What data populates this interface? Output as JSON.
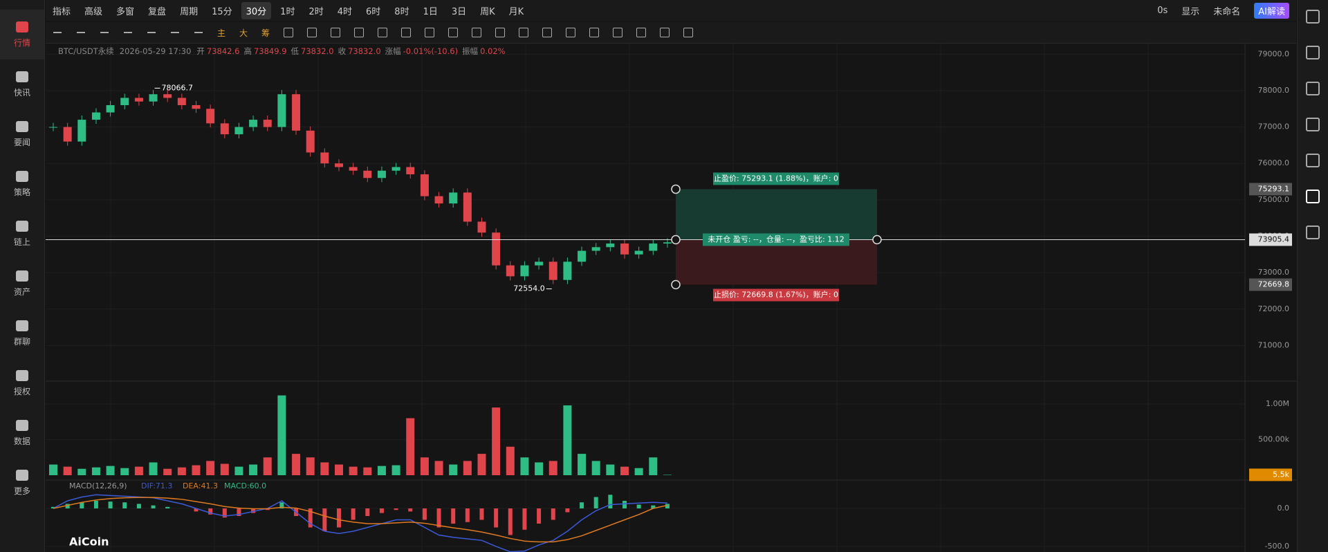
{
  "sidebar": {
    "items": [
      "行情",
      "快讯",
      "要闻",
      "策略",
      "链上",
      "资产",
      "群聊",
      "授权",
      "数据",
      "更多"
    ]
  },
  "toolbar": {
    "left": [
      "指标",
      "高级",
      "多窗",
      "复盘",
      "周期"
    ],
    "timeframes": [
      "15分",
      "30分",
      "1时",
      "2时",
      "4时",
      "6时",
      "8时",
      "1日",
      "3日",
      "周K",
      "月K"
    ],
    "selected_index": 1,
    "right": [
      "0s",
      "显示",
      "未命名",
      "AI解读"
    ],
    "drawing": [
      "主",
      "大",
      "筹"
    ]
  },
  "info": {
    "symbol": "BTC/USDT永续",
    "datetime": "2026-05-29 17:30",
    "fields": [
      {
        "label": "开",
        "value": "73842.6"
      },
      {
        "label": "高",
        "value": "73849.9"
      },
      {
        "label": "低",
        "value": "73832.0"
      },
      {
        "label": "收",
        "value": "73832.0"
      },
      {
        "label": "涨幅",
        "value": "-0.01%(-10.6)"
      },
      {
        "label": "振幅",
        "value": "0.02%"
      }
    ]
  },
  "chart": {
    "type": "candlestick",
    "closes": [
      77000,
      76600,
      77200,
      77400,
      77600,
      77800,
      77700,
      77900,
      77800,
      77600,
      77500,
      77100,
      76800,
      77000,
      77200,
      77000,
      77900,
      76900,
      76300,
      76000,
      75900,
      75800,
      75600,
      75800,
      75900,
      75700,
      75100,
      74900,
      75200,
      74400,
      74100,
      73200,
      72900,
      73200,
      73300,
      72800,
      73300,
      73600,
      73700,
      73800,
      73500,
      73600,
      73800,
      73832
    ],
    "ylim": [
      70020,
      79310
    ],
    "yticks": [
      {
        "value": 79000,
        "label": "79000.0"
      },
      {
        "value": 78000,
        "label": "78000.0"
      },
      {
        "value": 77000,
        "label": "77000.0"
      },
      {
        "value": 76000,
        "label": "76000.0"
      },
      {
        "value": 75000,
        "label": "75000.0"
      },
      {
        "value": 74000,
        "label": "74000.0"
      },
      {
        "value": 73000,
        "label": "73000.0"
      },
      {
        "value": 72000,
        "label": "72000.0"
      },
      {
        "value": 71000,
        "label": "71000.0"
      }
    ],
    "max_marker": 78066.7,
    "min_marker": {
      "value": 72554,
      "label": "72554.0"
    },
    "current_price": 73905.4,
    "take_profit": 75293.1,
    "stop_loss": 72669.8,
    "order": {
      "tp_text": "止盈价: 75293.1 (1.88%)，账户: 0",
      "entry_text": "未开仓 盈亏: --，仓量: --，盈亏比: 1.12",
      "sl_text": "止损价: 72669.8 (1.67%)，账户: 0"
    }
  },
  "volume": {
    "values": [
      150000,
      120000,
      90000,
      110000,
      130000,
      100000,
      120000,
      180000,
      90000,
      110000,
      140000,
      200000,
      160000,
      120000,
      150000,
      250000,
      1120000,
      300000,
      250000,
      180000,
      150000,
      120000,
      110000,
      130000,
      140000,
      800000,
      250000,
      200000,
      150000,
      200000,
      300000,
      950000,
      400000,
      250000,
      180000,
      200000,
      980000,
      300000,
      200000,
      150000,
      120000,
      100000,
      250000,
      5500
    ],
    "ylim": [
      0,
      1320000
    ],
    "yticks": [
      {
        "value": 1000000,
        "label": "1.00M"
      },
      {
        "value": 500000,
        "label": "500.00k"
      }
    ],
    "current": {
      "value": 5500,
      "label": "5.5k"
    }
  },
  "macd": {
    "title": "MACD(12,26,9)",
    "legend": [
      "DIF:71.3",
      "DEA:41.3",
      "MACD:60.0"
    ],
    "hist": [
      20,
      60,
      80,
      100,
      90,
      80,
      60,
      40,
      20,
      0,
      -40,
      -80,
      -120,
      -100,
      -60,
      -20,
      80,
      -100,
      -250,
      -300,
      -250,
      -150,
      -100,
      -60,
      -20,
      -40,
      -150,
      -250,
      -200,
      -180,
      -150,
      -250,
      -350,
      -280,
      -200,
      -150,
      -50,
      80,
      150,
      180,
      100,
      50,
      40,
      60
    ],
    "dif": [
      0,
      100,
      150,
      180,
      170,
      160,
      150,
      140,
      100,
      60,
      0,
      -60,
      -100,
      -80,
      -40,
      0,
      100,
      -50,
      -200,
      -300,
      -330,
      -300,
      -250,
      -200,
      -150,
      -150,
      -250,
      -350,
      -380,
      -400,
      -420,
      -500,
      -570,
      -560,
      -480,
      -420,
      -300,
      -150,
      -30,
      50,
      60,
      70,
      80,
      71.3
    ],
    "dea": [
      0,
      40,
      80,
      110,
      130,
      140,
      145,
      145,
      135,
      120,
      90,
      60,
      25,
      5,
      -5,
      -5,
      15,
      5,
      -40,
      -100,
      -150,
      -180,
      -200,
      -200,
      -190,
      -180,
      -195,
      -225,
      -255,
      -280,
      -310,
      -350,
      -395,
      -430,
      -440,
      -440,
      -410,
      -360,
      -290,
      -220,
      -150,
      -80,
      0,
      41.3
    ],
    "ylim": [
      -573,
      373
    ],
    "yticks": [
      {
        "value": 0,
        "label": "0.0"
      },
      {
        "value": -500,
        "label": "-500.0"
      }
    ]
  },
  "logo": "AiCoin"
}
